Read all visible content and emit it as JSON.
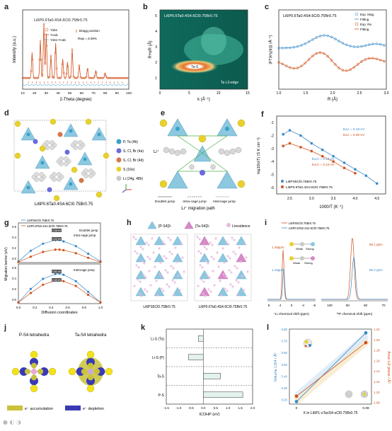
{
  "panels": {
    "a": {
      "label": "a",
      "title": "Li6P0.6Ta0.4S4.6Cl0.75Br0.75",
      "xlabel": "2-Theta (degree)",
      "ylabel": "Intensity (a.u.)",
      "xticks": [
        "10",
        "20",
        "30",
        "40",
        "50",
        "60",
        "70",
        "80",
        "90",
        "100"
      ],
      "legend": [
        "Yobs",
        "Ycalc",
        "Yobs-Ycalc",
        "Bragg position"
      ],
      "rwp": "Rwp = 6.09%"
    },
    "b": {
      "label": "b",
      "title": "Li6P0.6Ta0.4S4.6Cl0.75Br0.75",
      "xlabel": "k (Å⁻¹)",
      "ylabel": "R+αR (Å)",
      "xticks": [
        "0",
        "5",
        "10",
        "15"
      ],
      "yticks": [
        "1",
        "2",
        "3",
        "4",
        "5"
      ],
      "annotation": "Ta-S",
      "edge": "Ta L3-edge"
    },
    "c": {
      "label": "c",
      "title": "Li6P0.6Ta0.4S4.6Cl0.75Br0.75",
      "xlabel": "R (Å)",
      "ylabel": "|FT(k³χ(k))| (Å⁻⁴)",
      "xticks": [
        "1.0",
        "1.5",
        "2.0",
        "2.5",
        "3.0"
      ],
      "legend": [
        "Exp. Mag.",
        "Fitting",
        "Exp. Re.",
        "Fitting"
      ]
    },
    "d": {
      "label": "d",
      "caption": "Li6P0.6Ta0.4S4.6Cl0.75Br0.75",
      "legend": [
        "P, Ta (4b)",
        "S, Cl, Br (4a)",
        "S, Cl, Br (4d)",
        "S (16e)",
        "Li (24g, 48h)"
      ],
      "legend_colors": [
        "#3aa0c8",
        "#6a6adc",
        "#d4774a",
        "#e8d22a",
        "#c8c8c8"
      ]
    },
    "e": {
      "label": "e",
      "li_label": "Li⁺",
      "jumps": [
        "Doublet jump",
        "Intra-cage jump",
        "Intercage jump"
      ],
      "caption": "Li⁺ migration path"
    },
    "f": {
      "label": "f",
      "xlabel": "1000/T (K⁻¹)",
      "ylabel": "log10(σT) (S K cm⁻¹)",
      "xticks": [
        "2.5",
        "3.0",
        "3.5",
        "4.0",
        "4.5"
      ],
      "yticks": [
        "-1",
        "-2",
        "-3",
        "-4",
        "-5",
        "-6"
      ],
      "annotations": [
        "Ea,l = 0.18 eV",
        "Ea,l = 0.05 eV",
        "Ea,h = 0.14 eV",
        "Ea,h = 0.19 eV"
      ],
      "legend": [
        "Li6PS5Cl0.75Br0.75",
        "Li6P0.6Ta0.4S4.6Cl0.75Br0.75"
      ]
    },
    "g": {
      "label": "g",
      "legend": [
        "Li6PS5Cl0.75Br0.75",
        "Li6P0.6Ta0.4S4.6Cl0.75Br0.75"
      ],
      "top_labels": [
        "Doublet jump",
        "Intra-cage jump"
      ],
      "bottom_label": "Intercage jump",
      "barriers": [
        "0.38 eV",
        "0.22 eV",
        "0.51 eV",
        "0.40 eV"
      ],
      "xlabel": "Diffusion coordinates",
      "ylabel": "Migration barrier (eV)",
      "xticks": [
        "0.0",
        "0.2",
        "0.4",
        "0.6",
        "0.8",
        "1.0"
      ],
      "yticks": [
        "0.6",
        "0.4",
        "0.2",
        "0.0"
      ]
    },
    "h": {
      "label": "h",
      "legend": [
        "[P-S4]3-",
        "[Ta-S4]3-",
        "Liresidence"
      ],
      "captions": [
        "Li6PS5Cl0.75Br0.75",
        "Li6P0.6Ta0.4S4.6Cl0.75Br0.75"
      ]
    },
    "i": {
      "label": "i",
      "legend": [
        "Li6PS5Cl0.75Br0.75",
        "Li6P0.6Ta0.4S4.6Cl0.75Br0.75"
      ],
      "li_peaks": [
        "1.49ppm",
        "1.16ppm"
      ],
      "p_peaks": [
        "86.1 ppm",
        "86.2 ppm"
      ],
      "bond_labels": [
        "Weak",
        "Strong",
        "Weak",
        "Strong"
      ],
      "xlabel_li": "⁷Li chemical shift (ppm)",
      "xlabel_p": "³¹P chemical shift (ppm)",
      "li_ticks": [
        "8",
        "4",
        "0",
        "-4",
        "-8"
      ],
      "p_ticks": [
        "100",
        "90",
        "80",
        "70"
      ]
    },
    "j": {
      "label": "j",
      "titles": [
        "P-S4 tetrahedra",
        "Ta-S4 tetrahedra"
      ],
      "legend": [
        "e⁻ accumulation",
        "e⁻ depletion"
      ],
      "legend_colors": [
        "#c8c23a",
        "#3a3ab4"
      ]
    },
    "k": {
      "label": "k",
      "categories": [
        "Li-S (Ta)",
        "Li-S (P)",
        "Ta-S",
        "P-S"
      ],
      "xlabel": "ICOHP (eV)",
      "xticks": [
        "-1.5",
        "-1.0",
        "-0.5",
        "0.0",
        "0.5",
        "1.0",
        "1.5",
        "2.0"
      ]
    },
    "l": {
      "label": "l",
      "ylabel_left": "Volume LiS4 / Å³",
      "ylabel_right": "Area Li2 plane / Å²",
      "xlabel": "X in Li6P1-xTaxS4-xCl0.75Br0.75",
      "xticks": [
        "0",
        "0.08"
      ],
      "yticks_left": [
        "3.80",
        "3.70",
        "3.60",
        "3.50",
        "3.40",
        "3.30",
        "3.20"
      ],
      "yticks_right": [
        "1.22",
        "1.20",
        "1.18",
        "1.16",
        "1.14",
        "1.12",
        "1.10",
        "1.08"
      ]
    }
  },
  "chart_data": [
    {
      "type": "line",
      "panel": "f",
      "xlabel": "1000/T (K⁻¹)",
      "ylabel": "log10(σT) (S K cm⁻¹)",
      "xlim": [
        2.2,
        4.7
      ],
      "ylim": [
        -6.5,
        -0.5
      ],
      "series": [
        {
          "name": "Li6PS5Cl0.75Br0.75",
          "x": [
            2.35,
            2.5,
            2.75,
            3.0,
            3.25,
            3.5,
            3.75,
            4.0,
            4.25,
            4.5
          ],
          "y": [
            -1.9,
            -1.6,
            -2.0,
            -2.6,
            -3.1,
            -3.6,
            -4.1,
            -4.6,
            -5.1,
            -5.7
          ]
        },
        {
          "name": "Li6P0.6Ta0.4S4.6Cl0.75Br0.75",
          "x": [
            2.35,
            2.5,
            2.75,
            3.0,
            3.25,
            3.5,
            3.75,
            4.0
          ],
          "y": [
            -2.8,
            -2.6,
            -2.9,
            -3.2,
            -3.6,
            -4.0,
            -4.5,
            -4.9
          ]
        }
      ]
    },
    {
      "type": "line",
      "panel": "g",
      "xlabel": "Diffusion coordinates",
      "ylabel": "Migration barrier (eV)",
      "xlim": [
        0,
        1
      ],
      "ylim": [
        0,
        0.6
      ],
      "series": [
        {
          "name": "Li6PS5Cl0.75Br0.75 (top)",
          "x": [
            0,
            0.15,
            0.3,
            0.45,
            0.5,
            0.55,
            0.7,
            0.85,
            1.0
          ],
          "y": [
            0.02,
            0.2,
            0.32,
            0.38,
            0.38,
            0.36,
            0.28,
            0.15,
            0.02
          ]
        },
        {
          "name": "Li6P0.6Ta0.4S4.6Cl0.75Br0.75 (top)",
          "x": [
            0,
            0.15,
            0.3,
            0.45,
            0.5,
            0.55,
            0.7,
            0.85,
            1.0
          ],
          "y": [
            0.01,
            0.1,
            0.18,
            0.22,
            0.22,
            0.21,
            0.16,
            0.08,
            0.01
          ]
        },
        {
          "name": "Li6PS5Cl0.75Br0.75 (bottom)",
          "x": [
            0,
            0.15,
            0.3,
            0.45,
            0.5,
            0.55,
            0.7,
            0.85,
            1.0
          ],
          "y": [
            0.02,
            0.25,
            0.42,
            0.5,
            0.51,
            0.49,
            0.38,
            0.2,
            0.02
          ]
        },
        {
          "name": "Li6P0.6Ta0.4S4.6Cl0.75Br0.75 (bottom)",
          "x": [
            0,
            0.15,
            0.3,
            0.45,
            0.5,
            0.55,
            0.7,
            0.85,
            1.0
          ],
          "y": [
            0.02,
            0.18,
            0.32,
            0.39,
            0.4,
            0.38,
            0.3,
            0.15,
            0.02
          ]
        }
      ]
    },
    {
      "type": "bar",
      "panel": "k",
      "orientation": "horizontal",
      "categories": [
        "Li-S (Ta)",
        "Li-S (P)",
        "Ta-S",
        "P-S"
      ],
      "values": [
        -0.2,
        -0.6,
        0.7,
        1.6
      ],
      "xlabel": "ICOHP (eV)",
      "xlim": [
        -1.5,
        2.0
      ]
    },
    {
      "type": "line",
      "panel": "l",
      "xlabel": "X in Li6P1-xTaxS4-xCl0.75Br0.75",
      "x": [
        0,
        0.08
      ],
      "series": [
        {
          "name": "",
          "values": [
            3.22,
            3.77
          ]
        },
        {
          "name": "",
          "values": [
            1.1,
            1.2
          ]
        }
      ]
    }
  ]
}
